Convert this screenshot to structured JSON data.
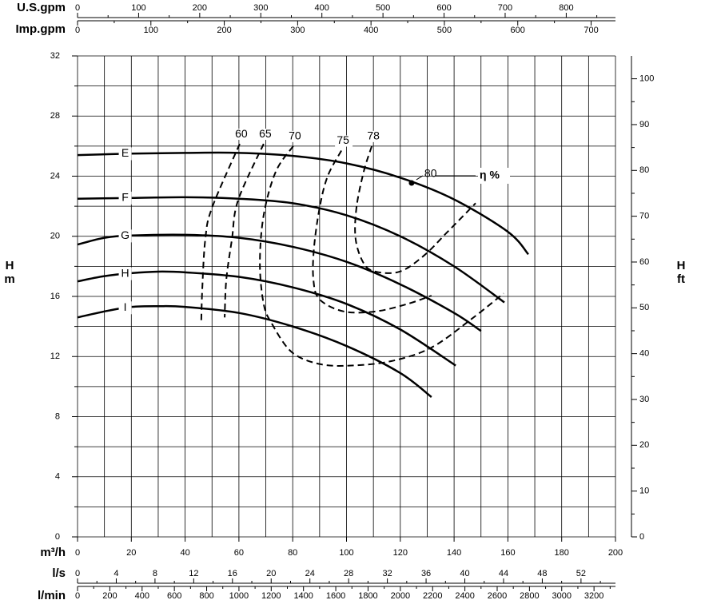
{
  "chart_data": {
    "type": "line",
    "x_label": "m³/h",
    "xlim": [
      0,
      200
    ],
    "xticks": [
      0,
      20,
      40,
      60,
      80,
      100,
      120,
      140,
      160,
      180,
      200
    ],
    "xminor": [
      10,
      30,
      50,
      70,
      90,
      110,
      130,
      150,
      170,
      190
    ],
    "y_label": "H",
    "y_unit": "m",
    "ylim": [
      0,
      32
    ],
    "yticks": [
      0,
      4,
      8,
      12,
      16,
      20,
      24,
      28,
      32
    ],
    "yminor": [
      2,
      6,
      10,
      14,
      18,
      22,
      26,
      30
    ],
    "y2_label": "H",
    "y2_unit": "ft",
    "y2lim": [
      0,
      104.99
    ],
    "y2ticks": [
      0,
      10,
      20,
      30,
      40,
      50,
      60,
      70,
      80,
      90,
      100
    ],
    "y2minor": [
      5,
      15,
      25,
      35,
      45,
      55,
      65,
      75,
      85,
      95
    ],
    "grid": true,
    "extra_x_axes": [
      {
        "label": "U.S.gpm",
        "xlim": [
          0,
          880.6
        ],
        "xticks": [
          0,
          100,
          200,
          300,
          400,
          500,
          600,
          700,
          800
        ],
        "minor": [
          50,
          150,
          250,
          350,
          450,
          550,
          650,
          750,
          850
        ]
      },
      {
        "label": "Imp.gpm",
        "xlim": [
          0,
          733.2
        ],
        "xticks": [
          0,
          100,
          200,
          300,
          400,
          500,
          600,
          700
        ],
        "minor": [
          50,
          150,
          250,
          350,
          450,
          550,
          650
        ]
      },
      {
        "label": "l/s",
        "xlim": [
          0,
          55.56
        ],
        "xticks": [
          0,
          4,
          8,
          12,
          16,
          20,
          24,
          28,
          32,
          36,
          40,
          44,
          48,
          52
        ],
        "minor": [
          2,
          6,
          10,
          14,
          18,
          22,
          26,
          30,
          34,
          38,
          42,
          46,
          50,
          54
        ]
      },
      {
        "label": "l/min",
        "xlim": [
          0,
          3333
        ],
        "xticks": [
          0,
          200,
          400,
          600,
          800,
          1000,
          1200,
          1400,
          1600,
          1800,
          2000,
          2200,
          2400,
          2600,
          2800,
          3000,
          3200
        ],
        "minor": [
          100,
          300,
          500,
          700,
          900,
          1100,
          1300,
          1500,
          1700,
          1900,
          2100,
          2300,
          2500,
          2700,
          2900,
          3100,
          3300
        ]
      }
    ],
    "efficiency_label": "η %",
    "series": [
      {
        "name": "E",
        "color": "#000000",
        "dash": false,
        "x": [
          0,
          20,
          40,
          60,
          80,
          100,
          120,
          140,
          160,
          167.6
        ],
        "values": [
          25.4,
          25.5,
          25.55,
          25.55,
          25.35,
          24.85,
          23.9,
          22.45,
          20.3,
          18.8
        ]
      },
      {
        "name": "F",
        "color": "#000000",
        "dash": false,
        "x": [
          0,
          20,
          40,
          60,
          80,
          100,
          120,
          140,
          158.7
        ],
        "values": [
          22.5,
          22.55,
          22.6,
          22.5,
          22.2,
          21.4,
          20.0,
          18.0,
          15.6
        ]
      },
      {
        "name": "G",
        "color": "#000000",
        "dash": false,
        "x": [
          0,
          10,
          20,
          40,
          60,
          80,
          100,
          120,
          140,
          150
        ],
        "values": [
          19.45,
          19.9,
          20.05,
          20.1,
          19.9,
          19.3,
          18.3,
          16.8,
          14.9,
          13.7
        ]
      },
      {
        "name": "H",
        "color": "#000000",
        "dash": false,
        "x": [
          0,
          10,
          20,
          30,
          40,
          60,
          80,
          100,
          120,
          140.6
        ],
        "values": [
          17.0,
          17.35,
          17.55,
          17.65,
          17.6,
          17.3,
          16.6,
          15.5,
          13.8,
          11.4
        ]
      },
      {
        "name": "I",
        "color": "#000000",
        "dash": false,
        "x": [
          0,
          10,
          20,
          30,
          40,
          60,
          80,
          100,
          120,
          131.6
        ],
        "values": [
          14.6,
          15.0,
          15.3,
          15.35,
          15.3,
          14.9,
          14.0,
          12.7,
          10.9,
          9.3
        ]
      },
      {
        "name": "60",
        "color": "#000000",
        "dash": true,
        "x": [
          60.3,
          50,
          47.5,
          46.4,
          46
        ],
        "values": [
          26.15,
          21.9,
          19.8,
          16.6,
          14.35
        ]
      },
      {
        "name": "65",
        "color": "#000000",
        "dash": true,
        "x": [
          69.2,
          59.7,
          57.4,
          55.3,
          54.7
        ],
        "values": [
          26.15,
          22.4,
          19.8,
          17.1,
          14.6
        ]
      },
      {
        "name": "70",
        "color": "#000000",
        "dash": true,
        "x": [
          80.2,
          73.7,
          69.2,
          67.8,
          69.2,
          72.2,
          79.6,
          90,
          101.9,
          116.8,
          131.6,
          146.5,
          158.4
        ],
        "values": [
          26.0,
          24.3,
          21.4,
          18.2,
          15.5,
          14.2,
          12.3,
          11.5,
          11.4,
          11.7,
          12.6,
          14.5,
          16.2
        ]
      },
      {
        "name": "75",
        "color": "#000000",
        "dash": true,
        "x": [
          98.1,
          93,
          90,
          87.9,
          87.7,
          90,
          99,
          110.8,
          122.7,
          131.6
        ],
        "values": [
          25.7,
          24.0,
          21.9,
          19.2,
          17.1,
          15.8,
          15.0,
          15.0,
          15.5,
          16.05
        ]
      },
      {
        "name": "78",
        "color": "#000000",
        "dash": true,
        "x": [
          109.4,
          106.4,
          103.7,
          103.4,
          106.4,
          110.8,
          119.8,
          128.7,
          137.6,
          148
        ],
        "values": [
          26.0,
          24.3,
          21.9,
          19.8,
          18.2,
          17.65,
          17.65,
          18.7,
          20.3,
          22.2
        ]
      },
      {
        "name": "80",
        "color": "#000000",
        "marker": true,
        "x": [
          124.2
        ],
        "values": [
          23.55
        ]
      }
    ]
  }
}
